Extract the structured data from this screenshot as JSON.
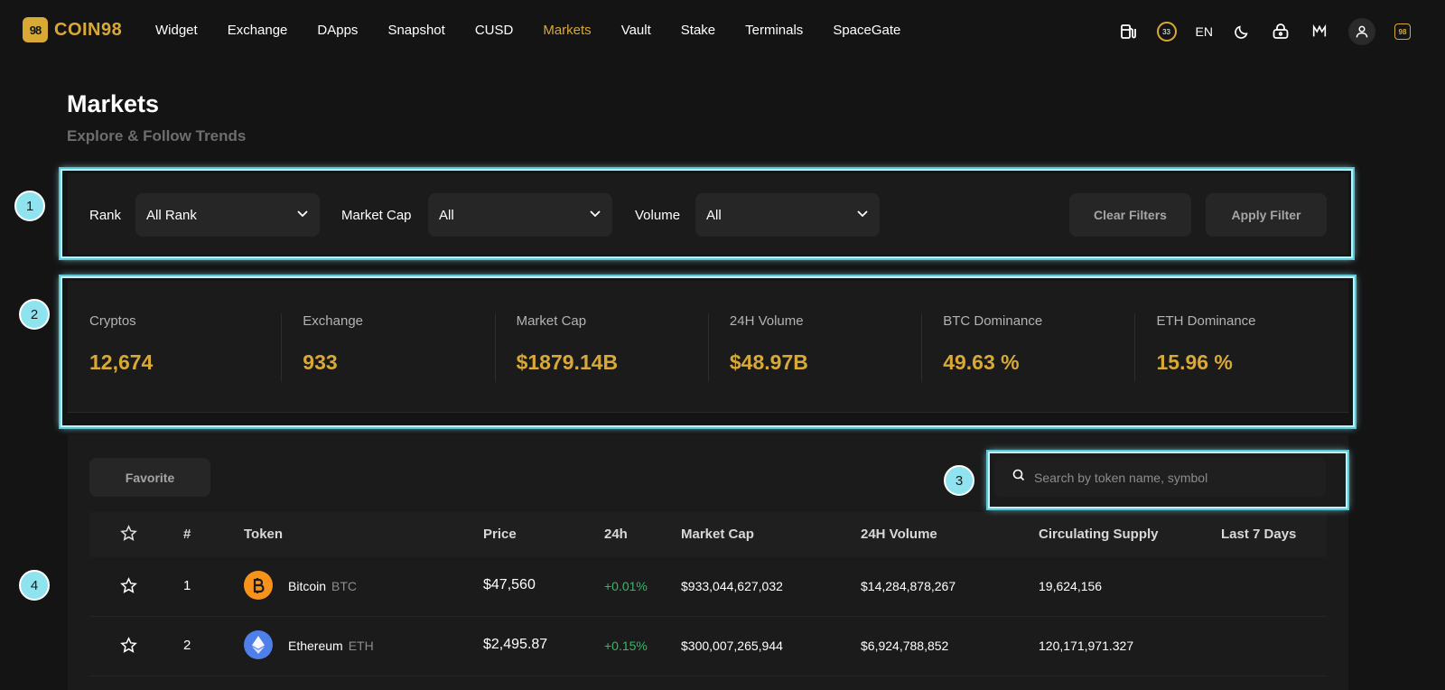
{
  "brand": {
    "mark": "98",
    "name": "COIN98"
  },
  "nav": {
    "links": [
      "Widget",
      "Exchange",
      "DApps",
      "Snapshot",
      "CUSD",
      "Markets",
      "Vault",
      "Stake",
      "Terminals",
      "SpaceGate"
    ],
    "active": "Markets",
    "gas_badge": "33",
    "language": "EN",
    "mini_logo": "98",
    "icons": [
      "gas-pump-icon",
      "moon-icon",
      "wallet-lock-icon",
      "m-logo-icon",
      "user-icon"
    ]
  },
  "header": {
    "title": "Markets",
    "subtitle": "Explore & Follow Trends"
  },
  "callouts": [
    "1",
    "2",
    "3",
    "4"
  ],
  "filters": {
    "rank_label": "Rank",
    "rank_value": "All Rank",
    "market_cap_label": "Market Cap",
    "market_cap_value": "All",
    "volume_label": "Volume",
    "volume_value": "All",
    "clear_label": "Clear Filters",
    "apply_label": "Apply Filter"
  },
  "stats": [
    {
      "label": "Cryptos",
      "value": "12,674"
    },
    {
      "label": "Exchange",
      "value": "933"
    },
    {
      "label": "Market Cap",
      "value": "$1879.14B"
    },
    {
      "label": "24H Volume",
      "value": "$48.97B"
    },
    {
      "label": "BTC Dominance",
      "value": "49.63 %"
    },
    {
      "label": "ETH Dominance",
      "value": "15.96 %"
    }
  ],
  "table": {
    "favorite_label": "Favorite",
    "search_placeholder": "Search by token name, symbol",
    "headers": {
      "rank": "#",
      "token": "Token",
      "price": "Price",
      "change": "24h",
      "market_cap": "Market Cap",
      "volume": "24H Volume",
      "supply": "Circulating Supply",
      "last7": "Last 7 Days"
    },
    "rows": [
      {
        "rank": "1",
        "name": "Bitcoin",
        "symbol": "BTC",
        "icon": "bitcoin-icon",
        "icon_color": "#f7931a",
        "price": "$47,560",
        "change": "+0.01%",
        "market_cap": "$933,044,627,032",
        "volume": "$14,284,878,267",
        "supply": "19,624,156"
      },
      {
        "rank": "2",
        "name": "Ethereum",
        "symbol": "ETH",
        "icon": "ethereum-icon",
        "icon_color": "#4f7fe8",
        "price": "$2,495.87",
        "change": "+0.15%",
        "market_cap": "$300,007,265,944",
        "volume": "$6,924,788,852",
        "supply": "120,171,971.327"
      }
    ]
  },
  "colors": {
    "accent": "#d9a936",
    "positive": "#3bb46b",
    "background": "#141414",
    "panel": "#1b1b1b",
    "callout": "#8ee3ef"
  }
}
